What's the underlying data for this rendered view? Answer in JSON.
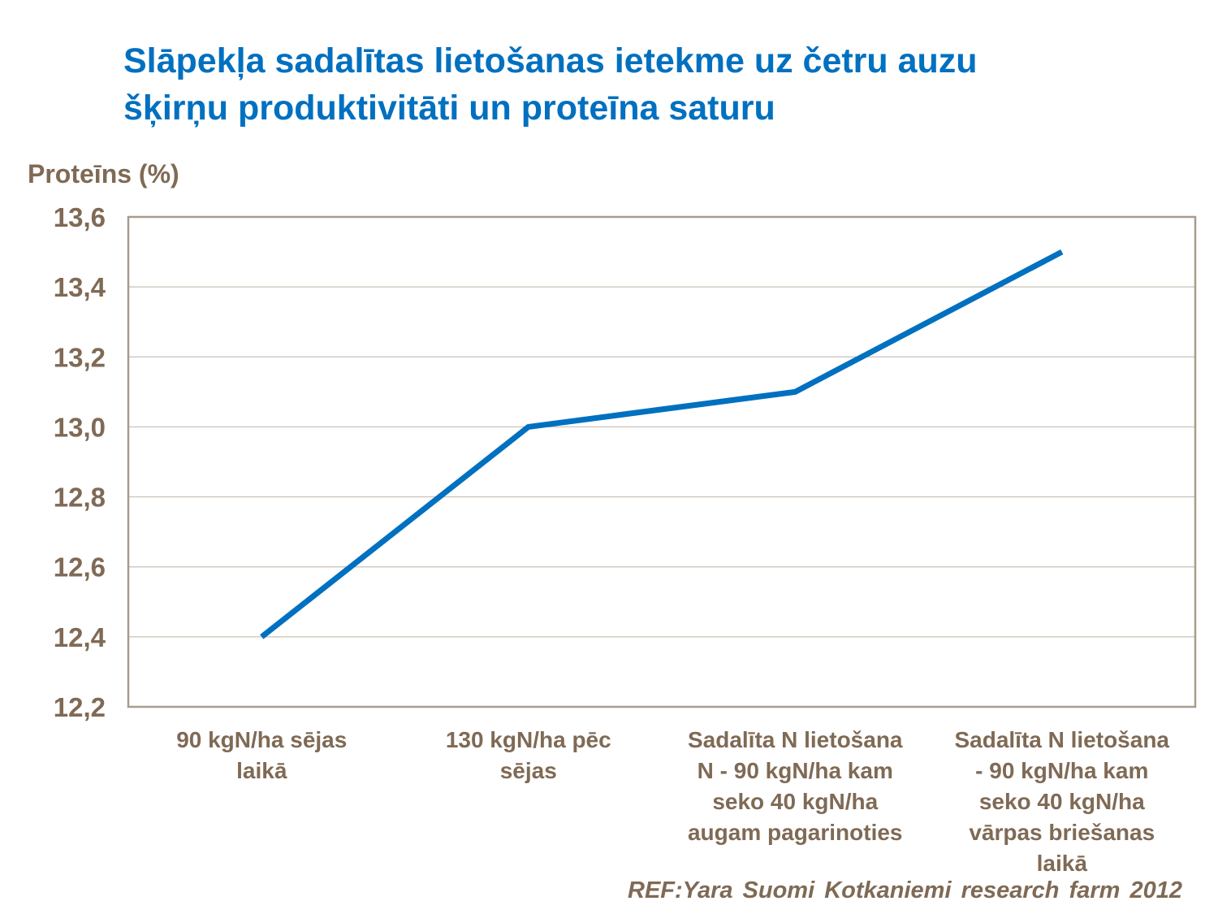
{
  "chart_data": {
    "type": "line",
    "title": "Slāpekļa sadalītas lietošanas ietekme uz četru auzu\nšķirņu produktivitāti un proteīna saturu",
    "xlabel": "",
    "ylabel": "Proteīns (%)",
    "categories": [
      "90 kgN/ha sējas\nlaikā",
      "130 kgN/ha pēc\nsējas",
      "Sadalīta N lietošana\nN - 90 kgN/ha kam\nseko 40 kgN/ha\naugam pagarinoties",
      "Sadalīta N lietošana\n- 90 kgN/ha kam\nseko 40 kgN/ha\nvārpas briešanas\nlaikā"
    ],
    "values": [
      12.4,
      13.0,
      13.1,
      13.5
    ],
    "ylim": [
      12.2,
      13.6
    ],
    "yticks": [
      "12,2",
      "12,4",
      "12,6",
      "12,8",
      "13,0",
      "13,2",
      "13,4",
      "13,6"
    ],
    "grid": true,
    "legend": "none",
    "line_color": "#0070C0",
    "source": "REF:Yara Suomi Kotkaniemi research farm 2012"
  }
}
